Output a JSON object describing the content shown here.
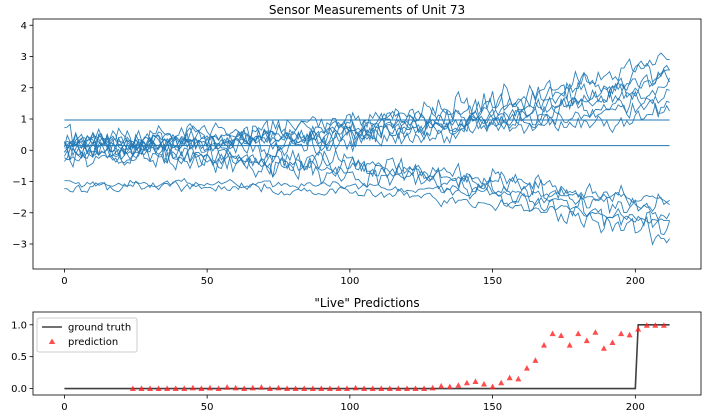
{
  "chart_data": [
    {
      "type": "line",
      "title": "Sensor Measurements of Unit 73",
      "xlabel": "",
      "ylabel": "",
      "xlim": [
        -11,
        223
      ],
      "ylim": [
        -3.8,
        4.2
      ],
      "xticks": [
        0,
        50,
        100,
        150,
        200
      ],
      "yticks": [
        -3,
        -2,
        -1,
        0,
        1,
        2,
        3,
        4
      ],
      "grid": false,
      "color": "#1f77b4",
      "n_cycles": 213,
      "flat_series": [
        {
          "value": 0.97
        },
        {
          "value": 0.15
        }
      ],
      "noisy_series": [
        {
          "start": 0.35,
          "end": 2.7,
          "noise": 0.32
        },
        {
          "start": 0.25,
          "end": 2.4,
          "noise": 0.3
        },
        {
          "start": 0.4,
          "end": 3.0,
          "noise": 0.34
        },
        {
          "start": 0.2,
          "end": 1.8,
          "noise": 0.3
        },
        {
          "start": 0.3,
          "end": 1.5,
          "noise": 0.28
        },
        {
          "start": 0.1,
          "end": 2.1,
          "noise": 0.3
        },
        {
          "start": 0.15,
          "end": 1.2,
          "noise": 0.28
        },
        {
          "start": 0.05,
          "end": 2.3,
          "noise": 0.32
        },
        {
          "start": -0.05,
          "end": -2.2,
          "noise": 0.3
        },
        {
          "start": -0.1,
          "end": -2.6,
          "noise": 0.32
        },
        {
          "start": -0.15,
          "end": -1.8,
          "noise": 0.28
        },
        {
          "start": -0.2,
          "end": -2.9,
          "noise": 0.3
        },
        {
          "start": -1.05,
          "end": -1.6,
          "noise": 0.13
        },
        {
          "start": -1.15,
          "end": -2.3,
          "noise": 0.15
        }
      ]
    },
    {
      "type": "line+scatter",
      "title": "\"Live\" Predictions",
      "xlabel": "",
      "ylabel": "",
      "xlim": [
        -11,
        223
      ],
      "ylim": [
        -0.1,
        1.2
      ],
      "xticks": [
        0,
        50,
        100,
        150,
        200
      ],
      "yticks": [
        0.0,
        0.5,
        1.0
      ],
      "grid": false,
      "legend": "top-left",
      "series": [
        {
          "name": "ground truth",
          "kind": "line",
          "color": "#404040",
          "x": [
            0,
            200,
            201,
            212
          ],
          "y": [
            0,
            0,
            1,
            1
          ]
        },
        {
          "name": "prediction",
          "kind": "scatter",
          "marker": "triangle",
          "color": "#ff2020",
          "x": [
            24,
            27,
            30,
            33,
            36,
            39,
            42,
            45,
            48,
            51,
            54,
            57,
            60,
            63,
            66,
            69,
            72,
            75,
            78,
            81,
            84,
            87,
            90,
            93,
            96,
            99,
            102,
            105,
            108,
            111,
            114,
            117,
            120,
            123,
            126,
            129,
            132,
            135,
            138,
            141,
            144,
            147,
            150,
            153,
            156,
            159,
            162,
            165,
            168,
            171,
            174,
            177,
            180,
            183,
            186,
            189,
            192,
            195,
            198,
            201,
            204,
            207,
            210
          ],
          "y": [
            0.0,
            0.0,
            0.0,
            0.0,
            0.0,
            0.0,
            0.0,
            0.01,
            0.0,
            0.01,
            0.0,
            0.02,
            0.01,
            0.0,
            0.01,
            0.02,
            0.0,
            0.01,
            0.0,
            0.0,
            0.0,
            0.0,
            0.0,
            0.0,
            0.0,
            0.0,
            0.01,
            0.0,
            0.0,
            0.0,
            0.0,
            0.0,
            0.0,
            0.0,
            0.0,
            0.01,
            0.04,
            0.03,
            0.05,
            0.09,
            0.11,
            0.07,
            0.03,
            0.09,
            0.17,
            0.15,
            0.32,
            0.44,
            0.68,
            0.86,
            0.83,
            0.68,
            0.86,
            0.75,
            0.88,
            0.63,
            0.72,
            0.86,
            0.84,
            0.93,
            0.99,
            0.99,
            0.99
          ]
        }
      ]
    }
  ]
}
